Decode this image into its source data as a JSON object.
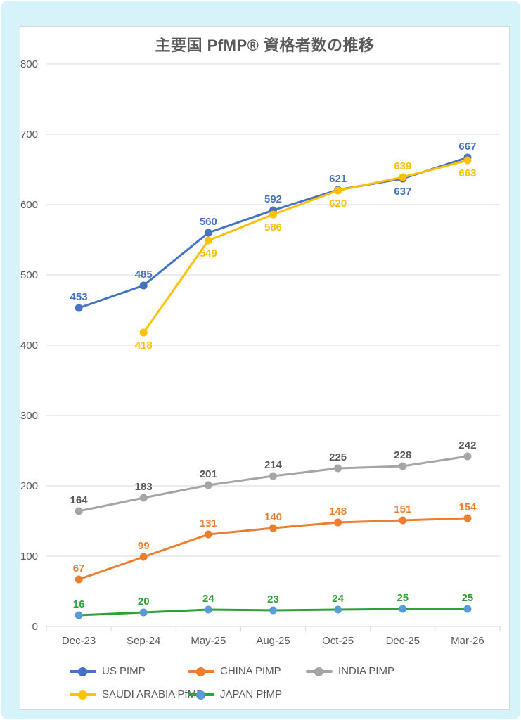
{
  "frame": {
    "background_color": "#D6F3F9",
    "panel_color": "#FFFFFF",
    "panel_border_color": "#D9D9D9"
  },
  "chart_data": {
    "type": "line",
    "title": "主要国 PfMP® 資格者数の推移",
    "categories": [
      "Dec-23",
      "Sep-24",
      "May-25",
      "Aug-25",
      "Oct-25",
      "Dec-25",
      "Mar-26"
    ],
    "ylim": [
      0,
      800
    ],
    "ytick_step": 100,
    "grid": true,
    "legend_position": "bottom",
    "grid_color": "#D9D9D9",
    "tick_label_color": "#595959",
    "title_color": "#595959",
    "series": [
      {
        "name": "US PfMP",
        "color": "#4472C4",
        "marker_color": "#4472C4",
        "label_color": "#4472C4",
        "values": [
          453,
          485,
          560,
          592,
          621,
          637,
          667
        ],
        "labels_below": [
          5
        ]
      },
      {
        "name": "CHINA PfMP",
        "color": "#ED7D31",
        "marker_color": "#ED7D31",
        "label_color": "#ED7D31",
        "values": [
          67,
          99,
          131,
          140,
          148,
          151,
          154
        ],
        "labels_below": []
      },
      {
        "name": "INDIA PfMP",
        "color": "#A5A5A5",
        "marker_color": "#A5A5A5",
        "label_color": "#595959",
        "values": [
          164,
          183,
          201,
          214,
          225,
          228,
          242
        ],
        "labels_below": []
      },
      {
        "name": "SAUDI ARABIA PfMP",
        "color": "#FFC000",
        "marker_color": "#FFC000",
        "label_color": "#FFC000",
        "values": [
          null,
          418,
          549,
          586,
          620,
          639,
          663
        ],
        "labels_below": [
          1,
          2,
          3,
          4,
          6
        ]
      },
      {
        "name": "JAPAN PfMP",
        "color": "#2EA137",
        "marker_color": "#5B9BD5",
        "label_color": "#2EA137",
        "values": [
          16,
          20,
          24,
          23,
          24,
          25,
          25
        ],
        "labels_below": []
      }
    ]
  }
}
